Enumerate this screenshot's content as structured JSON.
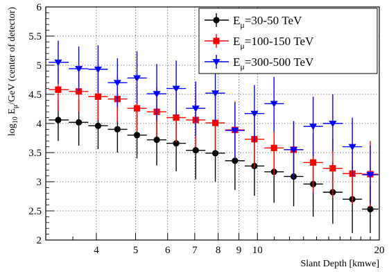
{
  "chart_data": {
    "type": "scatter",
    "title": "",
    "xlabel": "Slant Depth [kmwe]",
    "ylabel": {
      "prefix": "log",
      "sub1": "10",
      "mid": " E",
      "sub2": "μ",
      "suffix": "/GeV (center of detector)"
    },
    "x_scale": "log",
    "xlim": [
      3.0,
      20
    ],
    "ylim": [
      2,
      6
    ],
    "grid": true,
    "legend_position": "top-right",
    "x_ticks": [
      4,
      5,
      6,
      7,
      8,
      9,
      10,
      20
    ],
    "x_tick_labels": [
      "4",
      "5",
      "6",
      "7",
      "8",
      "9",
      "10",
      "20"
    ],
    "y_ticks": [
      2,
      2.5,
      3,
      3.5,
      4,
      4.5,
      5,
      5.5,
      6
    ],
    "y_tick_labels": [
      "2",
      "2.5",
      "3",
      "3.5",
      "4",
      "4.5",
      "5",
      "5.5",
      "6"
    ],
    "x_bins": [
      3.05,
      3.42,
      3.82,
      4.27,
      4.77,
      5.33,
      5.96,
      6.66,
      7.44,
      8.32,
      9.3,
      10.4,
      11.62,
      12.99,
      14.52,
      16.23,
      18.14,
      19.9
    ],
    "series": [
      {
        "label_main": "E",
        "label_sub": "μ",
        "label_rest": "=30-50 TeV",
        "color": "#000000",
        "marker": "circle",
        "points": [
          {
            "x": 3.22,
            "y": 4.06,
            "ylo": 3.7,
            "yhi": 4.4
          },
          {
            "x": 3.62,
            "y": 4.02,
            "ylo": 3.62,
            "yhi": 4.42
          },
          {
            "x": 4.04,
            "y": 3.96,
            "ylo": 3.56,
            "yhi": 4.4
          },
          {
            "x": 4.51,
            "y": 3.9,
            "ylo": 3.5,
            "yhi": 4.38
          },
          {
            "x": 5.04,
            "y": 3.8,
            "ylo": 3.4,
            "yhi": 4.26
          },
          {
            "x": 5.64,
            "y": 3.72,
            "ylo": 3.28,
            "yhi": 4.22
          },
          {
            "x": 6.3,
            "y": 3.66,
            "ylo": 3.18,
            "yhi": 4.14
          },
          {
            "x": 7.04,
            "y": 3.54,
            "ylo": 3.04,
            "yhi": 4.06
          },
          {
            "x": 7.87,
            "y": 3.49,
            "ylo": 3.0,
            "yhi": 4.0
          },
          {
            "x": 8.8,
            "y": 3.36,
            "ylo": 2.86,
            "yhi": 3.86
          },
          {
            "x": 9.83,
            "y": 3.27,
            "ylo": 2.76,
            "yhi": 3.8
          },
          {
            "x": 10.99,
            "y": 3.17,
            "ylo": 2.64,
            "yhi": 3.7
          },
          {
            "x": 12.29,
            "y": 3.09,
            "ylo": 2.58,
            "yhi": 3.6
          },
          {
            "x": 13.73,
            "y": 2.96,
            "ylo": 2.4,
            "yhi": 3.5
          },
          {
            "x": 15.35,
            "y": 2.82,
            "ylo": 2.28,
            "yhi": 3.34
          },
          {
            "x": 17.16,
            "y": 2.7,
            "ylo": 2.12,
            "yhi": 3.3
          },
          {
            "x": 19.0,
            "y": 2.53,
            "ylo": 2.12,
            "yhi": 2.94
          }
        ]
      },
      {
        "label_main": "E",
        "label_sub": "μ",
        "label_rest": "=100-150 TeV",
        "color": "#ff0000",
        "marker": "square",
        "points": [
          {
            "x": 3.22,
            "y": 4.58,
            "ylo": 4.2,
            "yhi": 4.96
          },
          {
            "x": 3.62,
            "y": 4.55,
            "ylo": 4.2,
            "yhi": 4.94
          },
          {
            "x": 4.04,
            "y": 4.46,
            "ylo": 4.06,
            "yhi": 4.88
          },
          {
            "x": 4.51,
            "y": 4.42,
            "ylo": 4.04,
            "yhi": 4.84
          },
          {
            "x": 5.04,
            "y": 4.26,
            "ylo": 3.86,
            "yhi": 4.66
          },
          {
            "x": 5.64,
            "y": 4.2,
            "ylo": 3.78,
            "yhi": 4.62
          },
          {
            "x": 6.3,
            "y": 4.1,
            "ylo": 3.68,
            "yhi": 4.54
          },
          {
            "x": 7.04,
            "y": 4.06,
            "ylo": 3.6,
            "yhi": 4.52
          },
          {
            "x": 7.87,
            "y": 4.01,
            "ylo": 3.54,
            "yhi": 4.48
          },
          {
            "x": 8.8,
            "y": 3.89,
            "ylo": 3.4,
            "yhi": 4.38
          },
          {
            "x": 9.83,
            "y": 3.73,
            "ylo": 3.24,
            "yhi": 4.22
          },
          {
            "x": 10.99,
            "y": 3.58,
            "ylo": 3.1,
            "yhi": 4.08
          },
          {
            "x": 12.29,
            "y": 3.55,
            "ylo": 3.06,
            "yhi": 4.04
          },
          {
            "x": 13.73,
            "y": 3.33,
            "ylo": 2.82,
            "yhi": 3.84
          },
          {
            "x": 15.35,
            "y": 3.23,
            "ylo": 2.72,
            "yhi": 3.74
          },
          {
            "x": 17.16,
            "y": 3.14,
            "ylo": 2.62,
            "yhi": 3.66
          },
          {
            "x": 19.0,
            "y": 3.13,
            "ylo": 2.56,
            "yhi": 3.7
          }
        ]
      },
      {
        "label_main": "E",
        "label_sub": "μ",
        "label_rest": "=300-500 TeV",
        "color": "#0000ff",
        "marker": "triangle-down",
        "points": [
          {
            "x": 3.22,
            "y": 5.05,
            "ylo": 4.68,
            "yhi": 5.42
          },
          {
            "x": 3.62,
            "y": 4.94,
            "ylo": 4.56,
            "yhi": 5.32
          },
          {
            "x": 4.04,
            "y": 4.93,
            "ylo": 4.52,
            "yhi": 5.34
          },
          {
            "x": 4.51,
            "y": 4.7,
            "ylo": 4.28,
            "yhi": 5.12
          },
          {
            "x": 5.04,
            "y": 4.78,
            "ylo": 4.34,
            "yhi": 5.24
          },
          {
            "x": 5.64,
            "y": 4.51,
            "ylo": 4.06,
            "yhi": 5.02
          },
          {
            "x": 6.3,
            "y": 4.6,
            "ylo": 4.14,
            "yhi": 5.08
          },
          {
            "x": 7.04,
            "y": 4.26,
            "ylo": 3.78,
            "yhi": 4.72
          },
          {
            "x": 7.87,
            "y": 4.52,
            "ylo": 4.04,
            "yhi": 5.0
          },
          {
            "x": 8.8,
            "y": 3.88,
            "ylo": 3.4,
            "yhi": 4.36
          },
          {
            "x": 9.83,
            "y": 4.17,
            "ylo": 3.68,
            "yhi": 4.66
          },
          {
            "x": 10.99,
            "y": 4.34,
            "ylo": 3.86,
            "yhi": 4.8
          },
          {
            "x": 12.29,
            "y": 3.55,
            "ylo": 3.06,
            "yhi": 4.04
          },
          {
            "x": 13.73,
            "y": 3.95,
            "ylo": 3.44,
            "yhi": 4.46
          },
          {
            "x": 15.35,
            "y": 4.0,
            "ylo": 3.52,
            "yhi": 4.5
          },
          {
            "x": 17.16,
            "y": 3.6,
            "ylo": 3.1,
            "yhi": 4.1
          },
          {
            "x": 19.0,
            "y": 3.12,
            "ylo": 2.62,
            "yhi": 3.62
          }
        ]
      }
    ]
  }
}
